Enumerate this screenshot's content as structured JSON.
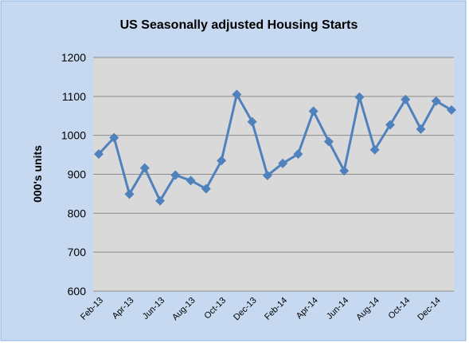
{
  "chart_data": {
    "type": "line",
    "title": "US Seasonally adjusted Housing Starts",
    "y_label": "000's units",
    "categories": [
      "Feb-13",
      null,
      "Apr-13",
      null,
      "Jun-13",
      null,
      "Aug-13",
      null,
      "Oct-13",
      null,
      "Dec-13",
      null,
      "Feb-14",
      null,
      "Apr-14",
      null,
      "Jun-14",
      null,
      "Aug-14",
      null,
      "Oct-14",
      null,
      "Dec-14",
      null
    ],
    "series": [
      {
        "name": "Housing Starts",
        "color": "#4f81bd",
        "values": [
          952,
          994,
          849,
          916,
          832,
          898,
          884,
          863,
          935,
          1105,
          1035,
          897,
          928,
          952,
          1062,
          984,
          909,
          1098,
          963,
          1027,
          1092,
          1016,
          1088,
          1065
        ]
      }
    ],
    "ylim": [
      600,
      1200
    ],
    "yticks": [
      600,
      700,
      800,
      900,
      1000,
      1100,
      1200
    ],
    "grid": true
  }
}
